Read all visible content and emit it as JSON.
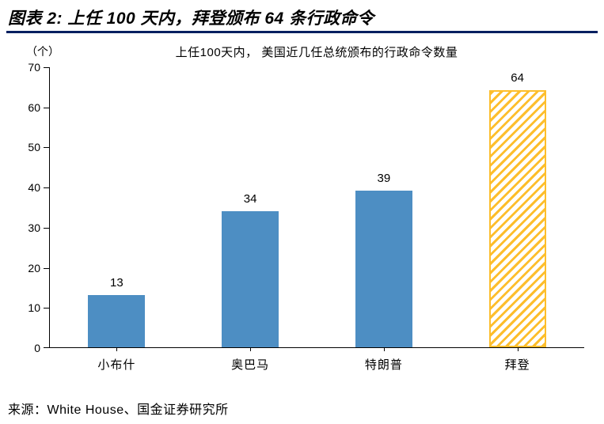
{
  "header": {
    "title": "图表 2:  上任 100 天内，拜登颁布 64 条行政命令"
  },
  "source": {
    "text": "来源：White House、国金证券研究所"
  },
  "colors": {
    "header_rule": "#002060",
    "axis": "#000000",
    "bar": "#4D8EC3",
    "hatch": "#FDBE2C"
  },
  "chart_data": {
    "type": "bar",
    "title": "上任100天内， 美国近几任总统颁布的行政命令数量",
    "unit_label": "（个）",
    "xlabel": "",
    "ylabel": "（个）",
    "categories": [
      "小布什",
      "奥巴马",
      "特朗普",
      "拜登"
    ],
    "values": [
      13,
      34,
      39,
      64
    ],
    "ylim": [
      0,
      70
    ],
    "yticks": [
      0,
      10,
      20,
      30,
      40,
      50,
      60,
      70
    ],
    "grid": false,
    "legend_position": "none",
    "highlight_index": 3,
    "highlight_style": "diagonal-hatch-yellow",
    "bar_color": "#4D8EC3",
    "highlight_color": "#FDBE2C"
  }
}
